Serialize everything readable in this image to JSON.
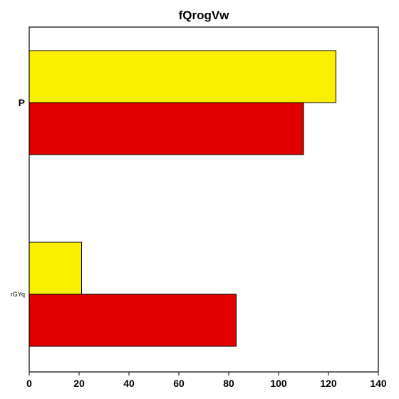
{
  "chart_data": {
    "type": "bar",
    "orientation": "horizontal",
    "title": "fQrogVw",
    "xlabel": "",
    "ylabel": "",
    "categories": [
      "P",
      "rGYq"
    ],
    "series": [
      {
        "color": "#fbef00",
        "values": [
          123,
          21
        ]
      },
      {
        "color": "#e00000",
        "values": [
          110,
          83
        ]
      }
    ],
    "xlim": [
      0,
      140
    ],
    "xticks": [
      0,
      20,
      40,
      60,
      80,
      100,
      120,
      140
    ],
    "grid": false,
    "legend": "none"
  }
}
